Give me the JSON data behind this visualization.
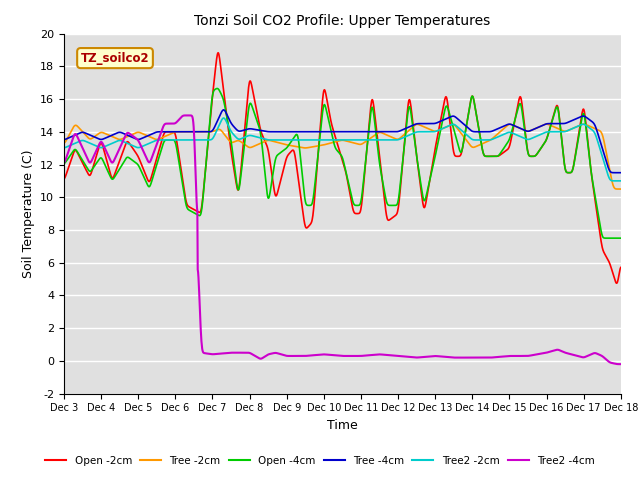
{
  "title": "Tonzi Soil CO2 Profile: Upper Temperatures",
  "xlabel": "Time",
  "ylabel": "Soil Temperature (C)",
  "ylim": [
    -2,
    20
  ],
  "annotation_text": "TZ_soilco2",
  "annotation_bg": "#ffffcc",
  "annotation_border": "#cc8800",
  "series_colors": {
    "Open -2cm": "#ff0000",
    "Tree -2cm": "#ff9900",
    "Open -4cm": "#00cc00",
    "Tree -4cm": "#0000cc",
    "Tree2 -2cm": "#00cccc",
    "Tree2 -4cm": "#cc00cc"
  },
  "xtick_labels": [
    "Dec 3",
    "Dec 4",
    "Dec 5",
    "Dec 6",
    "Dec 7",
    "Dec 8",
    "Dec 9",
    "Dec 10",
    "Dec 11",
    "Dec 12",
    "Dec 13",
    "Dec 14",
    "Dec 15",
    "Dec 16",
    "Dec 17",
    "Dec 18"
  ],
  "ytick_values": [
    -2,
    0,
    2,
    4,
    6,
    8,
    10,
    12,
    14,
    16,
    18,
    20
  ],
  "figsize": [
    6.4,
    4.8
  ],
  "dpi": 100
}
